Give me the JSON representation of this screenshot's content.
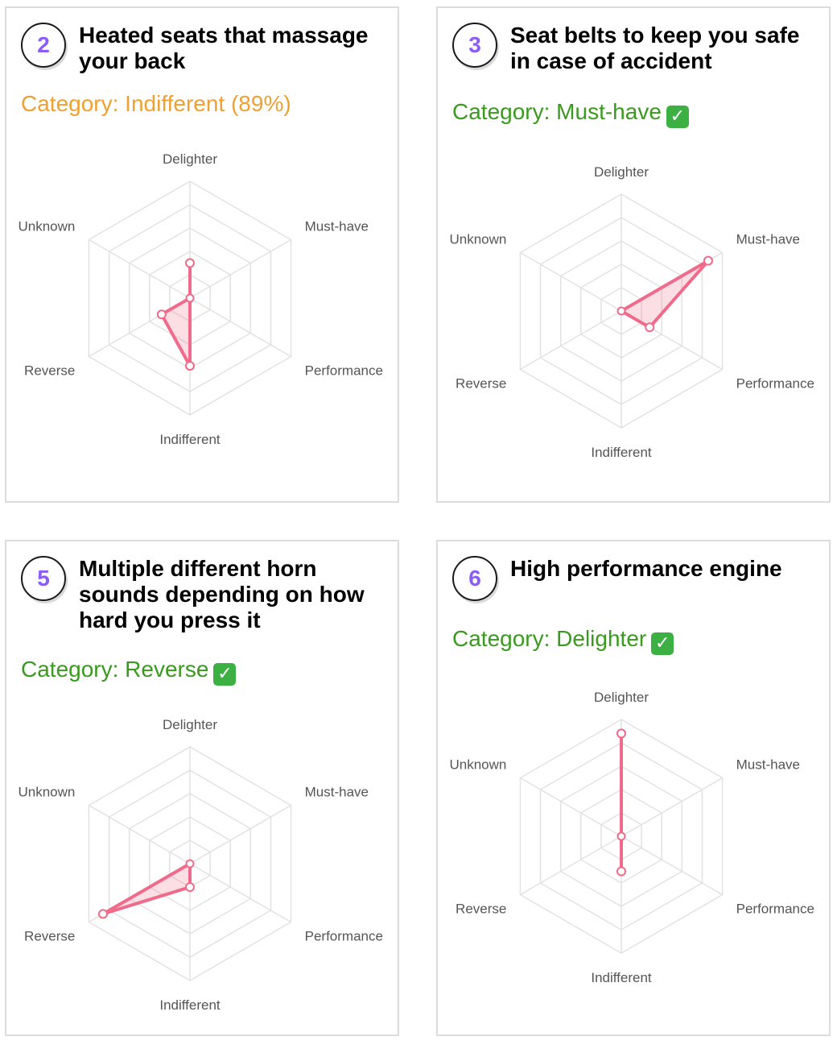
{
  "colors": {
    "badge_number": "#8b5cf6",
    "category_good": "#3a9a1f",
    "category_warn": "#f0a030",
    "series": "#f06a8a",
    "grid": "#e2e2e2"
  },
  "cards": [
    {
      "number": "2",
      "title": "Heated seats that massage your back",
      "category_text": "Category: Indifferent (89%)",
      "category_status": "warn",
      "show_check": false
    },
    {
      "number": "3",
      "title": "Seat belts to keep you safe in case of accident",
      "category_text": "Category: Must-have",
      "category_status": "good",
      "show_check": true
    },
    {
      "number": "5",
      "title": "Multiple different horn sounds depending on how hard you press it",
      "category_text": "Category: Reverse",
      "category_status": "good",
      "show_check": true
    },
    {
      "number": "6",
      "title": "High performance engine",
      "category_text": "Category: Delighter",
      "category_status": "good",
      "show_check": true
    }
  ],
  "chart_data": [
    {
      "type": "radar",
      "categories": [
        "Delighter",
        "Must-have",
        "Performance",
        "Indifferent",
        "Reverse",
        "Unknown"
      ],
      "rlim": [
        0,
        5
      ],
      "grid": true,
      "values": [
        1.5,
        0,
        0,
        2.9,
        1.4,
        0
      ]
    },
    {
      "type": "radar",
      "categories": [
        "Delighter",
        "Must-have",
        "Performance",
        "Indifferent",
        "Reverse",
        "Unknown"
      ],
      "rlim": [
        0,
        5
      ],
      "grid": true,
      "values": [
        0,
        4.3,
        1.4,
        0,
        0,
        0
      ]
    },
    {
      "type": "radar",
      "categories": [
        "Delighter",
        "Must-have",
        "Performance",
        "Indifferent",
        "Reverse",
        "Unknown"
      ],
      "rlim": [
        0,
        5
      ],
      "grid": true,
      "values": [
        0,
        0,
        0,
        1,
        4.3,
        0
      ]
    },
    {
      "type": "radar",
      "categories": [
        "Delighter",
        "Must-have",
        "Performance",
        "Indifferent",
        "Reverse",
        "Unknown"
      ],
      "rlim": [
        0,
        5
      ],
      "grid": true,
      "values": [
        4.4,
        0,
        0,
        1.5,
        0,
        0
      ]
    }
  ]
}
